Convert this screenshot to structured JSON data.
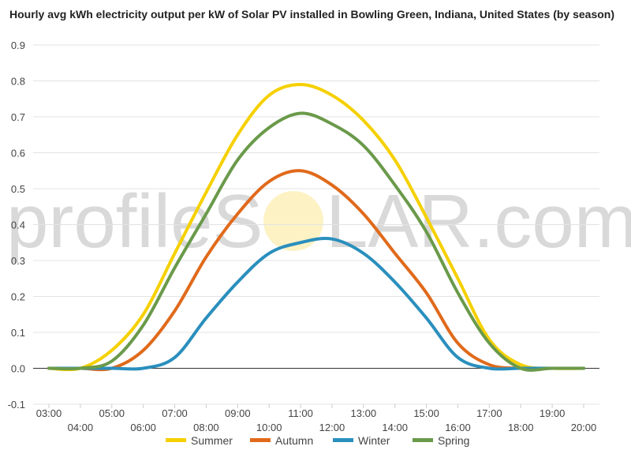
{
  "chart_data": {
    "type": "line",
    "title": "Hourly avg kWh electricity output per kW of Solar PV installed in Bowling Green, Indiana, United States (by season)",
    "xlabel": "",
    "ylabel": "",
    "x": [
      "03:00",
      "04:00",
      "05:00",
      "06:00",
      "07:00",
      "08:00",
      "09:00",
      "10:00",
      "11:00",
      "12:00",
      "13:00",
      "14:00",
      "15:00",
      "16:00",
      "17:00",
      "18:00",
      "19:00",
      "20:00"
    ],
    "ylim": [
      -0.1,
      0.9
    ],
    "yticks": [
      -0.1,
      0.0,
      0.1,
      0.2,
      0.3,
      0.4,
      0.5,
      0.6,
      0.7,
      0.8,
      0.9
    ],
    "grid": true,
    "legend_position": "bottom",
    "series": [
      {
        "name": "Summer",
        "color": "#f5d000",
        "values": [
          0.0,
          0.0,
          0.05,
          0.15,
          0.32,
          0.49,
          0.65,
          0.76,
          0.79,
          0.76,
          0.69,
          0.58,
          0.42,
          0.25,
          0.08,
          0.01,
          0.0,
          0.0
        ]
      },
      {
        "name": "Autumn",
        "color": "#e06a1b",
        "values": [
          0.0,
          0.0,
          0.0,
          0.05,
          0.16,
          0.31,
          0.43,
          0.52,
          0.55,
          0.51,
          0.43,
          0.32,
          0.21,
          0.07,
          0.01,
          0.0,
          0.0,
          0.0
        ]
      },
      {
        "name": "Winter",
        "color": "#2a8fbd",
        "values": [
          0.0,
          0.0,
          0.0,
          0.0,
          0.03,
          0.14,
          0.24,
          0.32,
          0.35,
          0.36,
          0.32,
          0.24,
          0.14,
          0.03,
          0.0,
          0.0,
          0.0,
          0.0
        ]
      },
      {
        "name": "Spring",
        "color": "#6a9a4a",
        "values": [
          0.0,
          0.0,
          0.02,
          0.12,
          0.28,
          0.43,
          0.58,
          0.67,
          0.71,
          0.68,
          0.62,
          0.51,
          0.38,
          0.21,
          0.07,
          0.0,
          0.0,
          0.0
        ]
      }
    ]
  },
  "watermark": {
    "left": "profileS",
    "right": "LAR.com"
  }
}
